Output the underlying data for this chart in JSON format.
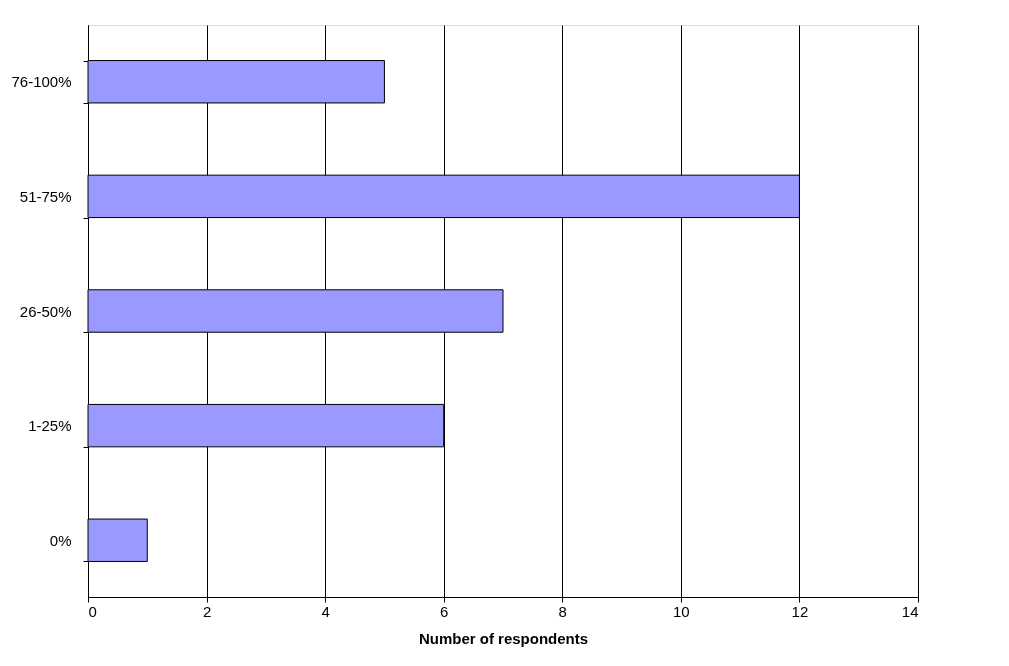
{
  "chart_data": {
    "type": "bar",
    "orientation": "horizontal",
    "xlabel": "Number of respondents",
    "categories": [
      "76-100%",
      "51-75%",
      "26-50%",
      "1-25%",
      "0%"
    ],
    "series": [
      {
        "color": "#9999ff",
        "values": [
          5,
          12,
          7,
          6,
          1
        ]
      }
    ],
    "xlim": [
      0,
      14
    ],
    "xticks": [
      0,
      2,
      4,
      6,
      8,
      10,
      12,
      14
    ],
    "grid": "x",
    "legend": false
  }
}
